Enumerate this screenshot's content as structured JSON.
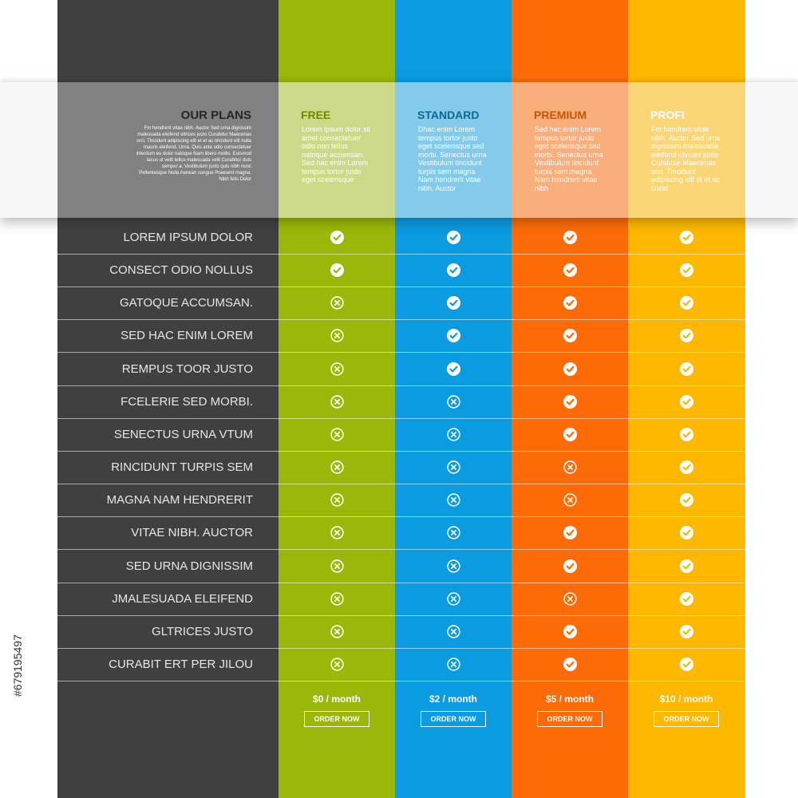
{
  "plans_header": {
    "title": "OUR PLANS",
    "text": "Fm hendrerit vitae nibh. Auctor Sed urna dignissim malesuada eleifend ultrices justo Curabitur Maecenas orci. Tincidunt adipiscing elit et et ac tincidunt elit nulla mauris eleifend. Urna. Quis ante odio consectetuer interdum eu dolor natoque Nam libero mollis. Euismod lacus ut velit tellus malesuada velit Curabitur duis semper a. Vestibulum justo quis nibh nunc Pellentesque Nulla Aenean congue Praesent magna. Nibh felis Dolor"
  },
  "colors": {
    "base": "#404040",
    "free": "#9bb80a",
    "standard": "#0b9be1",
    "premium": "#fd6b09",
    "profi": "#ffb800"
  },
  "plans": [
    {
      "name": "FREE",
      "desc": "Lorem ipsum dolor sit amet consectetuer odio non tellus natoque accumsan. Sed hac enim Lorem tempus tortor justo eget scelerisque",
      "price": "$0 / month",
      "order": "ORDER NOW"
    },
    {
      "name": "STANDARD",
      "desc": "Dhac enim Lorem tempus tortor justo eget scelerisque sed morbi. Senectus urna Vestibulum tincidunt turpis sem magna Nam hendrerit vitae nibh. Auctor",
      "price": "$2 / month",
      "order": "ORDER NOW"
    },
    {
      "name": "PREMIUM",
      "desc": "Sed hac enim Lorem tempus tortor justo eget scelerisque sed morbi. Senectus urna Vestibulum tincidunt turpis sem magna Nam hendrerit vitae nibh",
      "price": "$5 / month",
      "order": "ORDER NOW"
    },
    {
      "name": "PROFI",
      "desc": "Fm hendrerit vitae nibh. Auctor Sed urna dignissim malesuada eleifend ultrices justo Curabitur Maecenas orci. Tincidunt adipiscing elit et et ac tincid",
      "price": "$10 / month",
      "order": "ORDER NOW"
    }
  ],
  "features": [
    {
      "label": "LOREM IPSUM DOLOR",
      "values": [
        true,
        true,
        true,
        true
      ]
    },
    {
      "label": "CONSECT ODIO NOLLUS",
      "values": [
        true,
        true,
        true,
        true
      ]
    },
    {
      "label": "GATOQUE ACCUMSAN.",
      "values": [
        false,
        true,
        true,
        true
      ]
    },
    {
      "label": "SED HAC ENIM LOREM",
      "values": [
        false,
        true,
        true,
        true
      ]
    },
    {
      "label": "REMPUS TOOR JUSTO",
      "values": [
        false,
        true,
        true,
        true
      ]
    },
    {
      "label": "FCELERIE SED MORBI.",
      "values": [
        false,
        false,
        true,
        true
      ]
    },
    {
      "label": "SENECTUS URNA VTUM",
      "values": [
        false,
        false,
        true,
        true
      ]
    },
    {
      "label": "RINCIDUNT TURPIS SEM",
      "values": [
        false,
        false,
        false,
        true
      ]
    },
    {
      "label": "MAGNA NAM HENDRERIT",
      "values": [
        false,
        false,
        false,
        true
      ]
    },
    {
      "label": "VITAE NIBH. AUCTOR",
      "values": [
        false,
        false,
        true,
        true
      ]
    },
    {
      "label": "SED URNA DIGNISSIM",
      "values": [
        false,
        false,
        true,
        true
      ]
    },
    {
      "label": "JMALESUADA ELEIFEND",
      "values": [
        false,
        false,
        false,
        true
      ]
    },
    {
      "label": "GLTRICES JUSTO",
      "values": [
        false,
        false,
        true,
        true
      ]
    },
    {
      "label": "CURABIT ERT PER JILOU",
      "values": [
        false,
        false,
        true,
        true
      ]
    }
  ],
  "icons": {
    "included": "check-icon",
    "excluded": "cross-icon"
  },
  "stock_id": "#679195497"
}
